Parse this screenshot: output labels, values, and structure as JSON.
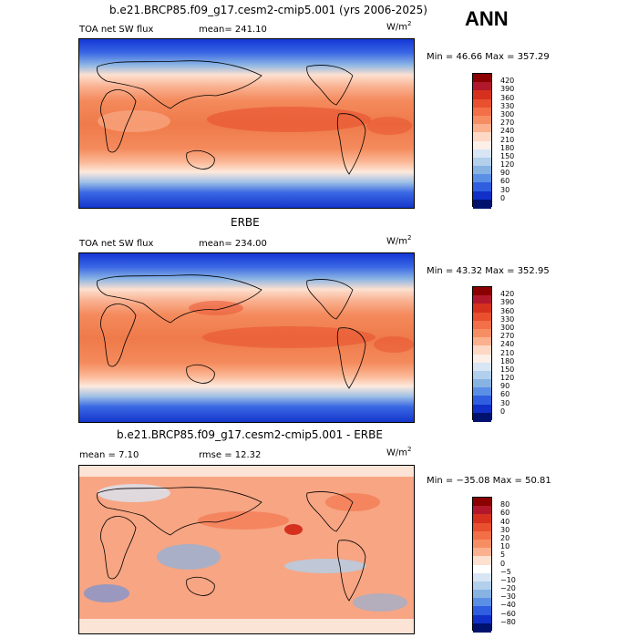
{
  "header": {
    "title": "b.e21.BRCP85.f09_g17.cesm2-cmip5.001 (yrs 2006-2025)",
    "season": "ANN"
  },
  "panels": [
    {
      "id": "model",
      "variable": "TOA net SW flux",
      "stat": "mean= 241.10",
      "units": "W/m",
      "units_sup": "2",
      "minmax": "Min =  46.66 Max = 357.29",
      "levels": [
        "420",
        "390",
        "360",
        "330",
        "300",
        "270",
        "240",
        "210",
        "180",
        "150",
        "120",
        "90",
        "60",
        "30",
        "0"
      ]
    },
    {
      "id": "obs",
      "title": "ERBE",
      "variable": "TOA net SW flux",
      "stat": "mean= 234.00",
      "units": "W/m",
      "units_sup": "2",
      "minmax": "Min =  43.32 Max = 352.95",
      "levels": [
        "420",
        "390",
        "360",
        "330",
        "300",
        "270",
        "240",
        "210",
        "180",
        "150",
        "120",
        "90",
        "60",
        "30",
        "0"
      ]
    },
    {
      "id": "diff",
      "title": "b.e21.BRCP85.f09_g17.cesm2-cmip5.001 - ERBE",
      "mean": "mean =   7.10",
      "rmse": "rmse =  12.32",
      "units": "W/m",
      "units_sup": "2",
      "minmax": "Min = −35.08 Max =  50.81",
      "levels": [
        "80",
        "60",
        "40",
        "30",
        "20",
        "10",
        "5",
        "0",
        "−5",
        "−10",
        "−20",
        "−30",
        "−40",
        "−60",
        "−80"
      ]
    }
  ],
  "colors": {
    "sw_scale": [
      "#8b0000",
      "#b2182b",
      "#d6301f",
      "#e8502e",
      "#f26f47",
      "#f78e63",
      "#fbb08e",
      "#fdd8c4",
      "#fbefe7",
      "#d8e5f4",
      "#b2cfeb",
      "#87b3e2",
      "#5b8fe6",
      "#2f5fe0",
      "#1030c8",
      "#00126e"
    ],
    "diff_scale": [
      "#8b0000",
      "#b2182b",
      "#d6301f",
      "#e8502e",
      "#f26f47",
      "#f78e63",
      "#fbb08e",
      "#fde0d0",
      "#ffffff",
      "#d8e5f4",
      "#b2cfeb",
      "#87b3e2",
      "#5b8fe6",
      "#2f5fe0",
      "#1030c8",
      "#00126e"
    ]
  }
}
